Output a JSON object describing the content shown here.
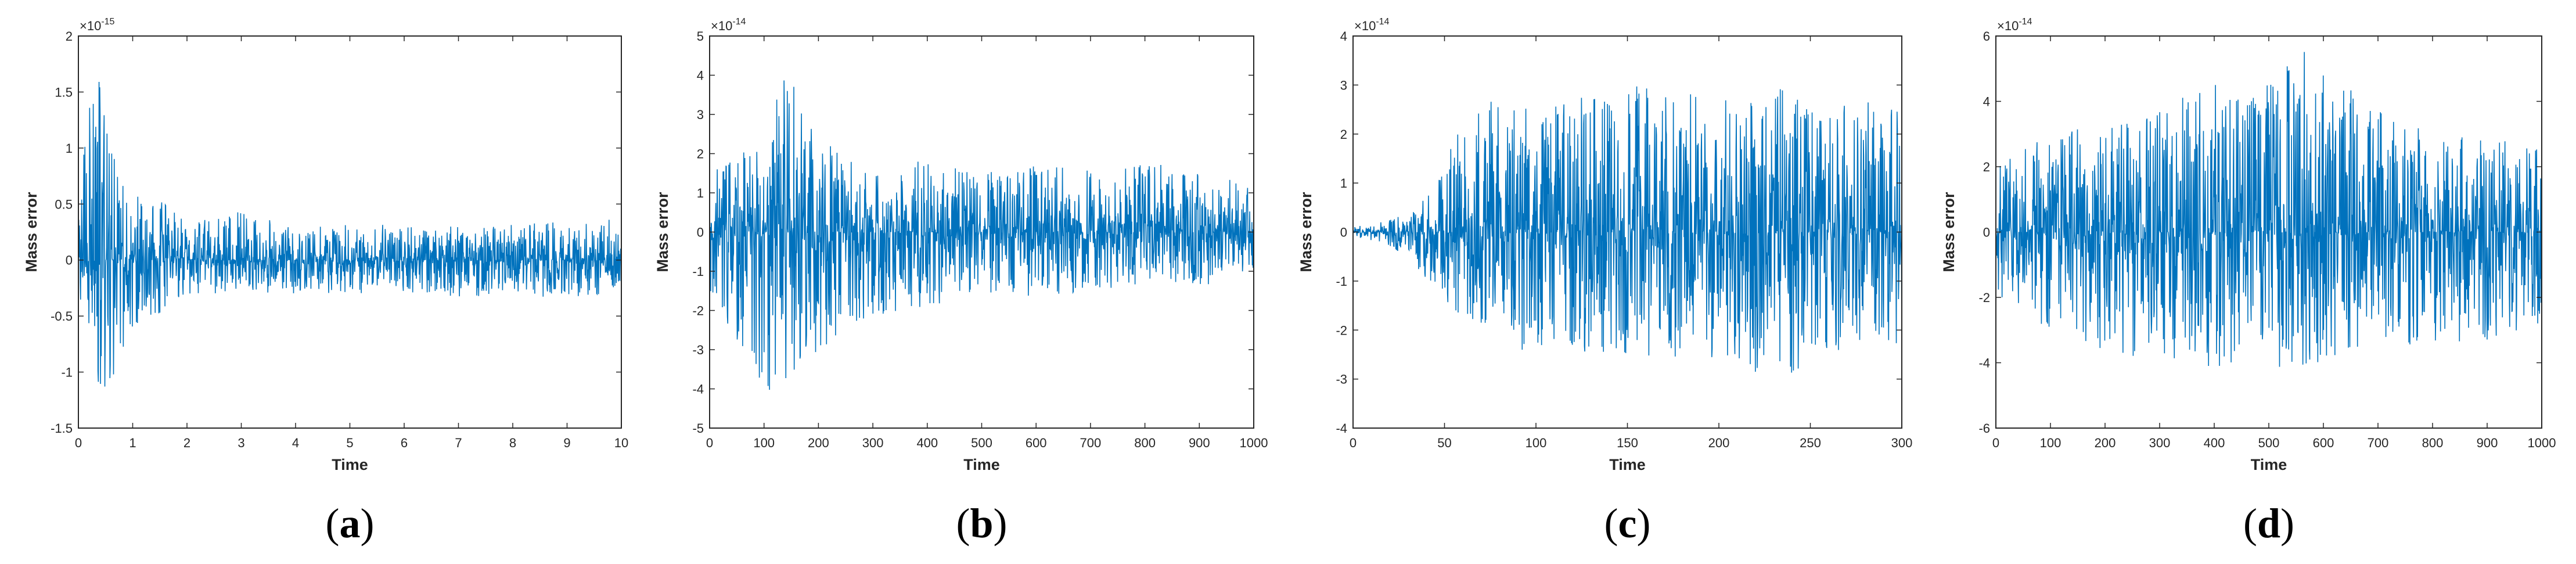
{
  "chart_data": [
    {
      "type": "line",
      "panel": "a",
      "caption_letter": "a",
      "xlabel": "Time",
      "ylabel": "Mass error",
      "exponent_base": "×10",
      "exponent_power": "-15",
      "xlim": [
        0,
        10
      ],
      "ylim": [
        -1.5,
        2
      ],
      "xticks": [
        0,
        1,
        2,
        3,
        4,
        5,
        6,
        7,
        8,
        9,
        10
      ],
      "xtick_labels": [
        "0",
        "1",
        "2",
        "3",
        "4",
        "5",
        "6",
        "7",
        "8",
        "9",
        "10"
      ],
      "yticks": [
        -1.5,
        -1,
        -0.5,
        0,
        0.5,
        1,
        1.5,
        2
      ],
      "ytick_labels": [
        "-1.5",
        "-1",
        "-0.5",
        "0",
        "0.5",
        "1",
        "1.5",
        "2"
      ],
      "line_color": "#0072BD",
      "series": [
        {
          "x": [
            0,
            0.2,
            0.4,
            0.6,
            0.8,
            1.0,
            1.2,
            1.6,
            2.0,
            3.0,
            4.0,
            5.0,
            6.0,
            7.0,
            8.0,
            9.0,
            10.0
          ],
          "envelope_high": [
            0.5,
            1.45,
            1.72,
            1.0,
            0.75,
            0.55,
            0.6,
            0.5,
            0.35,
            0.45,
            0.3,
            0.35,
            0.3,
            0.3,
            0.32,
            0.35,
            0.38
          ],
          "envelope_low": [
            -0.3,
            -0.8,
            -1.3,
            -1.1,
            -0.9,
            -0.7,
            -0.5,
            -0.5,
            -0.3,
            -0.3,
            -0.3,
            -0.3,
            -0.3,
            -0.35,
            -0.3,
            -0.35,
            -0.3
          ]
        }
      ]
    },
    {
      "type": "line",
      "panel": "b",
      "caption_letter": "b",
      "xlabel": "Time",
      "ylabel": "Mass error",
      "exponent_base": "×10",
      "exponent_power": "-14",
      "xlim": [
        0,
        1000
      ],
      "ylim": [
        -5,
        5
      ],
      "xticks": [
        0,
        100,
        200,
        300,
        400,
        500,
        600,
        700,
        800,
        900,
        1000
      ],
      "xtick_labels": [
        "0",
        "100",
        "200",
        "300",
        "400",
        "500",
        "600",
        "700",
        "800",
        "900",
        "1000"
      ],
      "yticks": [
        -5,
        -4,
        -3,
        -2,
        -1,
        0,
        1,
        2,
        3,
        4,
        5
      ],
      "ytick_labels": [
        "-5",
        "-4",
        "-3",
        "-2",
        "-1",
        "0",
        "1",
        "2",
        "3",
        "4",
        "5"
      ],
      "line_color": "#0072BD",
      "series": [
        {
          "x": [
            0,
            50,
            100,
            140,
            200,
            300,
            400,
            500,
            600,
            700,
            800,
            900,
            1000
          ],
          "envelope_high": [
            1.5,
            2.0,
            2.3,
            4.5,
            2.4,
            1.5,
            1.9,
            1.5,
            1.7,
            1.6,
            1.8,
            1.5,
            1.2
          ],
          "envelope_low": [
            -1.5,
            -2.8,
            -4.1,
            -4.0,
            -3.1,
            -2.2,
            -2.0,
            -1.6,
            -1.7,
            -1.5,
            -1.3,
            -1.4,
            -1.0
          ]
        }
      ]
    },
    {
      "type": "line",
      "panel": "c",
      "caption_letter": "c",
      "xlabel": "Time",
      "ylabel": "Mass error",
      "exponent_base": "×10",
      "exponent_power": "-14",
      "xlim": [
        0,
        300
      ],
      "ylim": [
        -4,
        4
      ],
      "xticks": [
        0,
        50,
        100,
        150,
        200,
        250,
        300
      ],
      "xtick_labels": [
        "0",
        "50",
        "100",
        "150",
        "200",
        "250",
        "300"
      ],
      "yticks": [
        -4,
        -3,
        -2,
        -1,
        0,
        1,
        2,
        3,
        4
      ],
      "ytick_labels": [
        "-4",
        "-3",
        "-2",
        "-1",
        "0",
        "1",
        "2",
        "3",
        "4"
      ],
      "line_color": "#0072BD",
      "series": [
        {
          "x": [
            0,
            15,
            30,
            45,
            60,
            75,
            100,
            150,
            200,
            235,
            250,
            300
          ],
          "envelope_high": [
            0.1,
            0.2,
            0.4,
            0.9,
            2.5,
            2.7,
            2.5,
            3.0,
            2.8,
            3.0,
            2.6,
            2.7
          ],
          "envelope_low": [
            -0.1,
            -0.2,
            -0.5,
            -1.2,
            -1.8,
            -2.2,
            -2.5,
            -2.5,
            -2.6,
            -3.2,
            -2.5,
            -2.3
          ]
        }
      ]
    },
    {
      "type": "line",
      "panel": "d",
      "caption_letter": "d",
      "xlabel": "Time",
      "ylabel": "Mass error",
      "exponent_base": "×10",
      "exponent_power": "-14",
      "xlim": [
        0,
        1000
      ],
      "ylim": [
        -6,
        6
      ],
      "xticks": [
        0,
        100,
        200,
        300,
        400,
        500,
        600,
        700,
        800,
        900,
        1000
      ],
      "xtick_labels": [
        "0",
        "100",
        "200",
        "300",
        "400",
        "500",
        "600",
        "700",
        "800",
        "900",
        "1000"
      ],
      "yticks": [
        -6,
        -4,
        -2,
        0,
        2,
        4,
        6
      ],
      "ytick_labels": [
        "-6",
        "-4",
        "-2",
        "0",
        "2",
        "4",
        "6"
      ],
      "line_color": "#0072BD",
      "series": [
        {
          "x": [
            0,
            100,
            200,
            300,
            380,
            450,
            570,
            650,
            700,
            800,
            900,
            1000
          ],
          "envelope_high": [
            2.0,
            3.0,
            3.3,
            3.7,
            4.9,
            4.0,
            5.6,
            4.5,
            3.8,
            3.0,
            3.0,
            2.6
          ],
          "envelope_low": [
            -2.0,
            -3.0,
            -3.8,
            -3.8,
            -4.2,
            -4.2,
            -4.3,
            -4.2,
            -3.6,
            -3.4,
            -3.3,
            -2.9
          ]
        }
      ]
    }
  ]
}
